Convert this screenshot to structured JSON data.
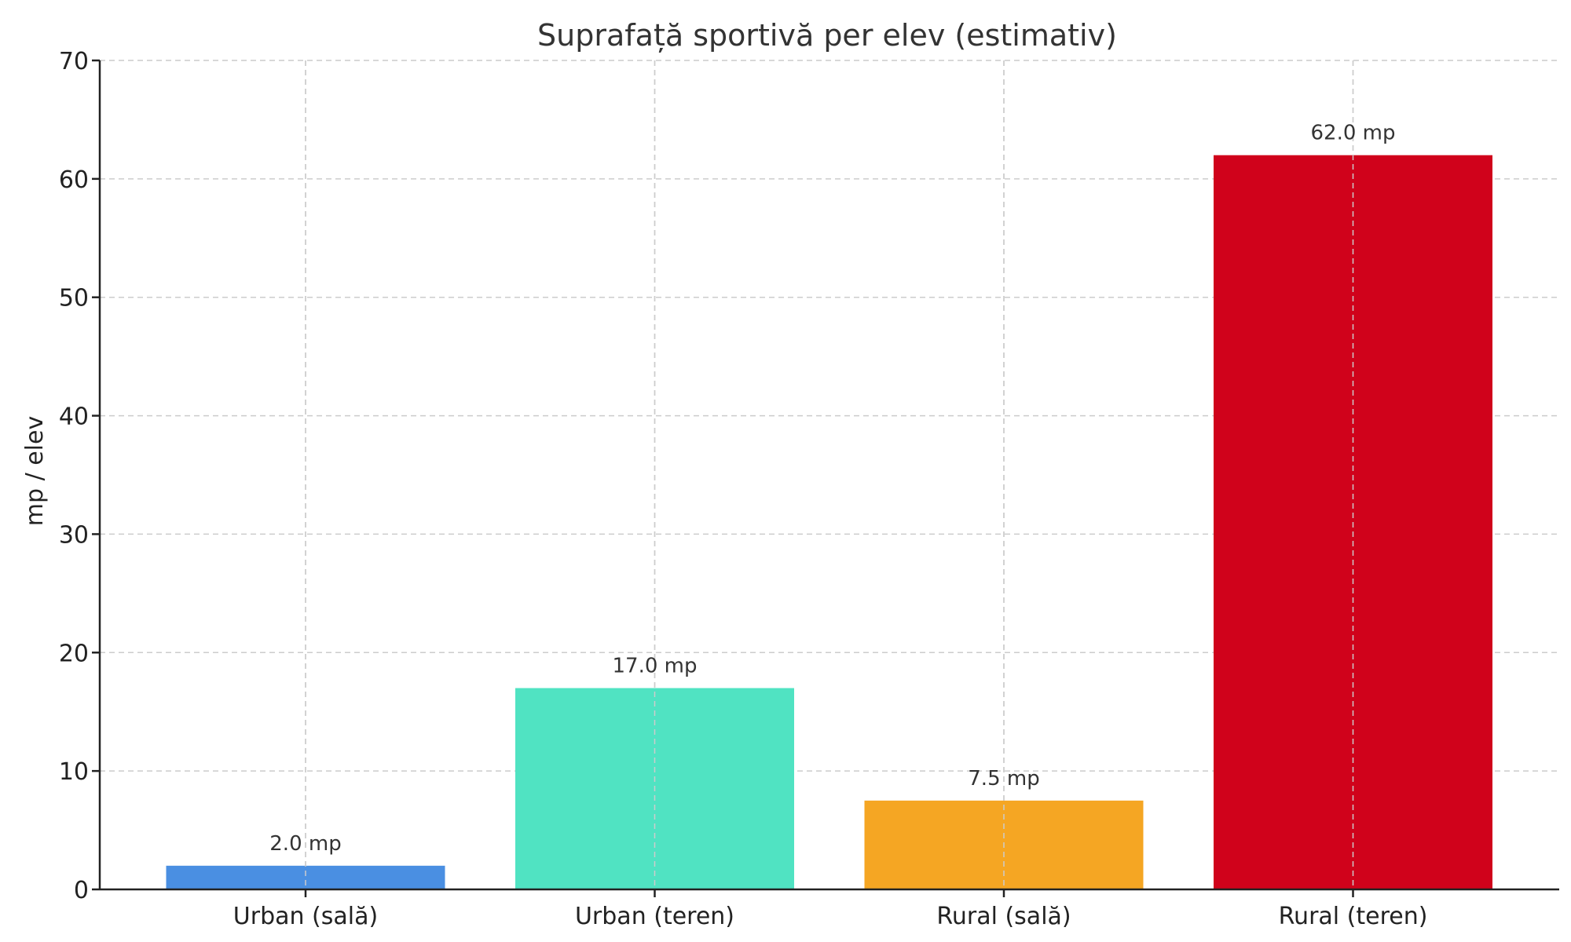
{
  "chart_data": {
    "type": "bar",
    "title": "Suprafață sportivă per elev (estimativ)",
    "xlabel": "",
    "ylabel": "mp / elev",
    "ylim": [
      0,
      70
    ],
    "yticks": [
      0,
      10,
      20,
      30,
      40,
      50,
      60,
      70
    ],
    "grid": true,
    "categories": [
      "Urban (sală)",
      "Urban (teren)",
      "Rural (sală)",
      "Rural (teren)"
    ],
    "values": [
      2.0,
      17.0,
      7.5,
      62.0
    ],
    "data_labels": [
      "2.0 mp",
      "17.0 mp",
      "7.5 mp",
      "62.0 mp"
    ],
    "colors": [
      "#4a8fe2",
      "#50e3c2",
      "#f5a623",
      "#d0021b"
    ]
  }
}
